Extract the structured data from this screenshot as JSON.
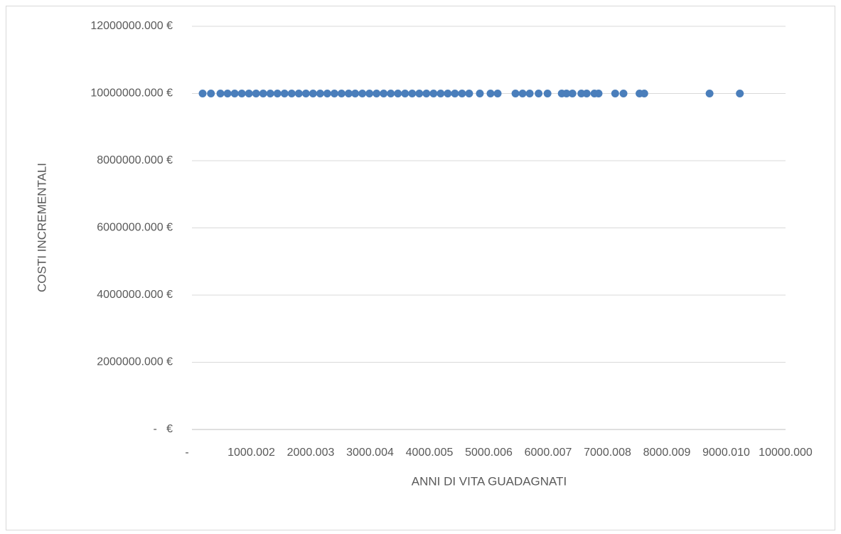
{
  "chart_data": {
    "type": "scatter",
    "xlabel": "ANNI DI VITA GUADAGNATI",
    "ylabel": "COSTI INCREMENTALI",
    "color": "#4a7ebb",
    "grid": true,
    "x": [
      180,
      320,
      480,
      600,
      720,
      840,
      960,
      1080,
      1200,
      1320,
      1440,
      1560,
      1680,
      1800,
      1920,
      2040,
      2160,
      2280,
      2400,
      2520,
      2640,
      2750,
      2870,
      2990,
      3110,
      3230,
      3350,
      3470,
      3590,
      3710,
      3830,
      3950,
      4070,
      4190,
      4310,
      4430,
      4550,
      4670,
      4850,
      5030,
      5150,
      5450,
      5570,
      5690,
      5840,
      5990,
      6230,
      6310,
      6410,
      6560,
      6650,
      6780,
      6850,
      7130,
      7270,
      7540,
      7620,
      8720,
      9230
    ],
    "values": [
      10000000,
      10000000,
      10000000,
      10000000,
      10000000,
      10000000,
      10000000,
      10000000,
      10000000,
      10000000,
      10000000,
      10000000,
      10000000,
      10000000,
      10000000,
      10000000,
      10000000,
      10000000,
      10000000,
      10000000,
      10000000,
      10000000,
      10000000,
      10000000,
      10000000,
      10000000,
      10000000,
      10000000,
      10000000,
      10000000,
      10000000,
      10000000,
      10000000,
      10000000,
      10000000,
      10000000,
      10000000,
      10000000,
      10000000,
      10000000,
      10000000,
      10000000,
      10000000,
      10000000,
      10000000,
      10000000,
      10000000,
      10000000,
      10000000,
      10000000,
      10000000,
      10000000,
      10000000,
      10000000,
      10000000,
      10000000,
      10000000,
      10000000,
      10000000
    ],
    "xlim": [
      0,
      10000
    ],
    "xticks": [
      {
        "value": 0,
        "label": "-"
      },
      1000.002,
      2000.003,
      3000.004,
      4000.005,
      5000.006,
      6000.007,
      7000.008,
      8000.009,
      {
        "value": 9000.01,
        "label": "9000.010"
      },
      {
        "value": 10000,
        "label": "10000.000"
      }
    ],
    "ylim": [
      0,
      12000000
    ],
    "yticks": [
      {
        "value": 0,
        "label": "-   €"
      },
      {
        "value": 2000000,
        "label": "2000000.000 €"
      },
      {
        "value": 4000000,
        "label": "4000000.000 €"
      },
      {
        "value": 6000000,
        "label": "6000000.000 €"
      },
      {
        "value": 8000000,
        "label": "8000000.000 €"
      },
      {
        "value": 10000000,
        "label": "10000000.000 €"
      },
      {
        "value": 12000000,
        "label": "12000000.000 €"
      }
    ]
  }
}
